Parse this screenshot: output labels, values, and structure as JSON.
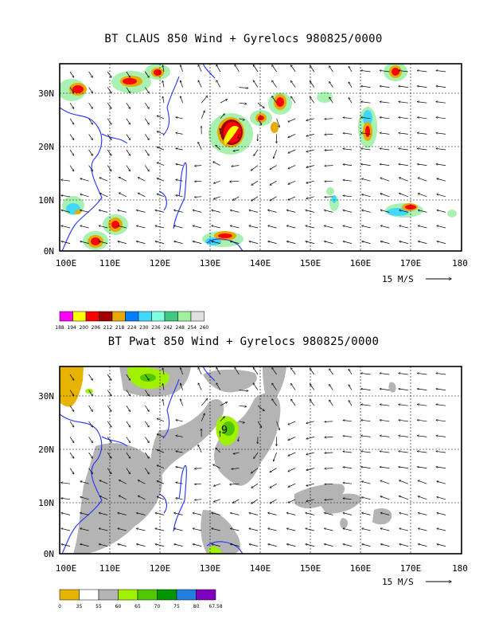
{
  "panel1": {
    "title": "BT CLAUS 850 Wind + Gyrelocs 980825/0000",
    "colorbar_labels": [
      "188",
      "194",
      "200",
      "206",
      "212",
      "218",
      "224",
      "230",
      "236",
      "242",
      "248",
      "254",
      "260"
    ],
    "colorbar_colors": [
      "#ff00ff",
      "#ffff00",
      "#ff0000",
      "#a00000",
      "#e6aa00",
      "#0080ff",
      "#40d8ff",
      "#80ffe0",
      "#40c880",
      "#a0f0a0",
      "#e0e0e0"
    ]
  },
  "panel2": {
    "title": "BT Pwat 850 Wind + Gyrelocs 980825/0000",
    "storm_marker": "9",
    "colorbar_labels": [
      "0",
      "35",
      "55",
      "60",
      "65",
      "70",
      "75",
      "80",
      "67.58"
    ],
    "colorbar_colors": [
      "#e6b400",
      "#ffffff",
      "#b4b4b4",
      "#a0f000",
      "#50c800",
      "#009600",
      "#2080e0",
      "#8000c0"
    ]
  },
  "map": {
    "x_ticks": [
      "100E",
      "110E",
      "120E",
      "130E",
      "140E",
      "150E",
      "160E",
      "170E",
      "180"
    ],
    "y_ticks": [
      "0N",
      "10N",
      "20N",
      "30N"
    ],
    "ref_vector_label": "15 M/S"
  }
}
